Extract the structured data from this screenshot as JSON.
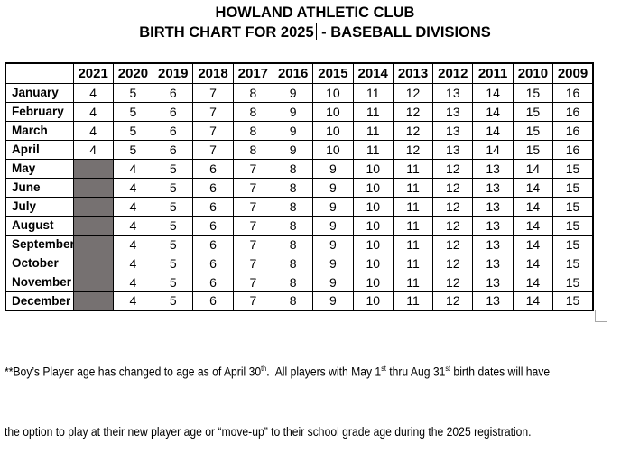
{
  "title": {
    "line1": "HOWLAND ATHLETIC CLUB",
    "line2_before_caret": "BIRTH CHART FOR 2025",
    "line2_after_caret": "- BASEBALL DIVISIONS"
  },
  "table": {
    "corner_header": "",
    "year_headers": [
      "2021",
      "2020",
      "2019",
      "2018",
      "2017",
      "2016",
      "2015",
      "2014",
      "2013",
      "2012",
      "2011",
      "2010",
      "2009"
    ],
    "rows": [
      {
        "month": "January",
        "shaded_2021": false,
        "values": [
          "4",
          "5",
          "6",
          "7",
          "8",
          "9",
          "10",
          "11",
          "12",
          "13",
          "14",
          "15",
          "16"
        ]
      },
      {
        "month": "February",
        "shaded_2021": false,
        "values": [
          "4",
          "5",
          "6",
          "7",
          "8",
          "9",
          "10",
          "11",
          "12",
          "13",
          "14",
          "15",
          "16"
        ]
      },
      {
        "month": "March",
        "shaded_2021": false,
        "values": [
          "4",
          "5",
          "6",
          "7",
          "8",
          "9",
          "10",
          "11",
          "12",
          "13",
          "14",
          "15",
          "16"
        ]
      },
      {
        "month": "April",
        "shaded_2021": false,
        "values": [
          "4",
          "5",
          "6",
          "7",
          "8",
          "9",
          "10",
          "11",
          "12",
          "13",
          "14",
          "15",
          "16"
        ]
      },
      {
        "month": "May",
        "shaded_2021": true,
        "values": [
          "",
          "4",
          "5",
          "6",
          "7",
          "8",
          "9",
          "10",
          "11",
          "12",
          "13",
          "14",
          "15"
        ]
      },
      {
        "month": "June",
        "shaded_2021": true,
        "values": [
          "",
          "4",
          "5",
          "6",
          "7",
          "8",
          "9",
          "10",
          "11",
          "12",
          "13",
          "14",
          "15"
        ]
      },
      {
        "month": "July",
        "shaded_2021": true,
        "values": [
          "",
          "4",
          "5",
          "6",
          "7",
          "8",
          "9",
          "10",
          "11",
          "12",
          "13",
          "14",
          "15"
        ]
      },
      {
        "month": "August",
        "shaded_2021": true,
        "values": [
          "",
          "4",
          "5",
          "6",
          "7",
          "8",
          "9",
          "10",
          "11",
          "12",
          "13",
          "14",
          "15"
        ]
      },
      {
        "month": "September",
        "shaded_2021": true,
        "values": [
          "",
          "4",
          "5",
          "6",
          "7",
          "8",
          "9",
          "10",
          "11",
          "12",
          "13",
          "14",
          "15"
        ]
      },
      {
        "month": "October",
        "shaded_2021": true,
        "values": [
          "",
          "4",
          "5",
          "6",
          "7",
          "8",
          "9",
          "10",
          "11",
          "12",
          "13",
          "14",
          "15"
        ]
      },
      {
        "month": "November",
        "shaded_2021": true,
        "values": [
          "",
          "4",
          "5",
          "6",
          "7",
          "8",
          "9",
          "10",
          "11",
          "12",
          "13",
          "14",
          "15"
        ]
      },
      {
        "month": "December",
        "shaded_2021": true,
        "values": [
          "",
          "4",
          "5",
          "6",
          "7",
          "8",
          "9",
          "10",
          "11",
          "12",
          "13",
          "14",
          "15"
        ]
      }
    ]
  },
  "footnote": {
    "line1_segments": [
      {
        "text": "**Boy’s Player age has changed to age as of April 30"
      },
      {
        "text": "th",
        "superscript": true
      },
      {
        "text": ".  All players with May 1"
      },
      {
        "text": "st",
        "superscript": true
      },
      {
        "text": " thru Aug 31"
      },
      {
        "text": "st",
        "superscript": true
      },
      {
        "text": " birth dates will have"
      }
    ],
    "line2": "the option to play at their new player age or “move-up” to their school grade age during the 2025 registration."
  },
  "colors": {
    "shaded_cell": "#767171",
    "table_border": "#000000",
    "checkbox_border": "#a6a6a6"
  }
}
